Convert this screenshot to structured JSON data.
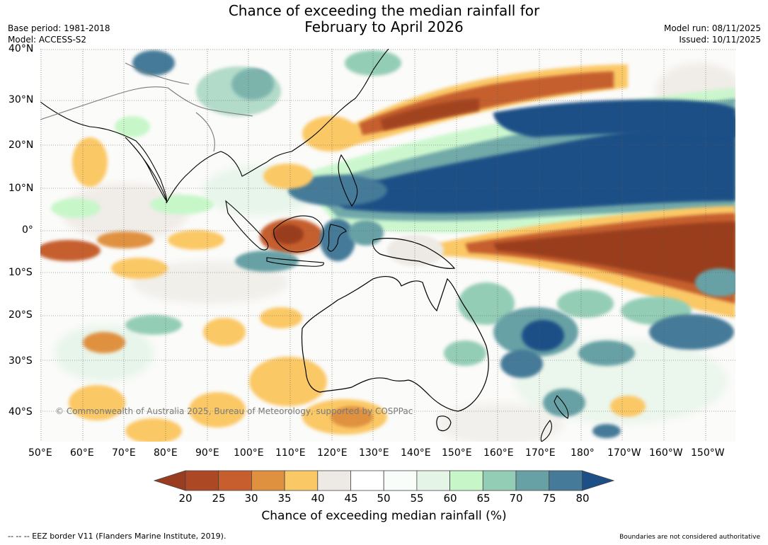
{
  "title": {
    "line1": "Chance of exceeding the median rainfall for",
    "line2": "February to April 2026"
  },
  "meta": {
    "base_period": "Base period: 1981-2018",
    "model": "Model: ACCESS-S2",
    "model_run": "Model run: 08/11/2025",
    "issued": "Issued: 10/11/2025"
  },
  "map": {
    "lat_labels": [
      "40°N",
      "30°N",
      "20°N",
      "10°N",
      "0°",
      "10°S",
      "20°S",
      "30°S",
      "40°S"
    ],
    "lon_labels": [
      "50°E",
      "60°E",
      "70°E",
      "80°E",
      "90°E",
      "100°E",
      "110°E",
      "120°E",
      "130°E",
      "140°E",
      "150°E",
      "160°E",
      "170°E",
      "180°",
      "170°W",
      "160°W",
      "150°W"
    ],
    "copyright": "© Commonwealth of Australia 2025, Bureau of Meteorology, supported by COSPPac"
  },
  "colorbar": {
    "colors": [
      "#9a3c1f",
      "#ad4824",
      "#c65f2d",
      "#e0913f",
      "#fbc866",
      "#ede9e4",
      "#ffffff",
      "#f8fdfa",
      "#e4f4e7",
      "#c7f7c9",
      "#94cdb5",
      "#68a1a5",
      "#457a98",
      "#1b4f86"
    ],
    "ticks": [
      "20",
      "25",
      "30",
      "35",
      "40",
      "45",
      "50",
      "55",
      "60",
      "65",
      "70",
      "75",
      "80"
    ],
    "label": "Chance of exceeding median rainfall (%)"
  },
  "footer": {
    "eez": "--  --  -- EEZ border V11 (Flanders Marine Institute, 2019).",
    "disclaimer": "Boundaries are not considered authoritative"
  }
}
